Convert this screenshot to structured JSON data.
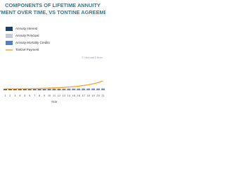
{
  "chart_data": {
    "type": "bar",
    "title": "COMPONENTS OF LIFETIME ANNUITY",
    "subtitle": "PAYMENT OVER TIME, VS TONTINE AGREEMENT",
    "annotation": "© Michael Kitces",
    "x_label": "Year",
    "categories": [
      "1",
      "2",
      "3",
      "4",
      "5",
      "6",
      "7",
      "8",
      "9",
      "10",
      "11",
      "12",
      "13",
      "14",
      "15",
      "16",
      "17",
      "18",
      "19",
      "20",
      "21"
    ],
    "ylim": [
      0,
      100
    ],
    "series": [
      {
        "name": "Annuity Interest",
        "color": "#1f3f6e",
        "kind": "bar",
        "values": [
          1.4,
          1.4,
          1.3,
          1.3,
          1.3,
          1.2,
          1.2,
          1.2,
          1.1,
          1.1,
          1.0,
          1.0,
          0.9,
          0.9,
          0.8,
          0.8,
          0.7,
          0.7,
          0.6,
          0.6,
          0.5
        ]
      },
      {
        "name": "Annuity Principal",
        "color": "#c3ccd6",
        "kind": "bar",
        "values": [
          0.8,
          0.8,
          0.8,
          0.8,
          0.8,
          0.8,
          0.8,
          0.8,
          0.8,
          0.8,
          0.8,
          0.8,
          0.8,
          0.8,
          0.8,
          0.8,
          0.8,
          0.8,
          0.8,
          0.8,
          0.8
        ]
      },
      {
        "name": "Annuity Mortality Credits",
        "color": "#4f81bd",
        "kind": "bar",
        "values": [
          0.2,
          0.2,
          0.3,
          0.3,
          0.3,
          0.4,
          0.4,
          0.4,
          0.5,
          0.5,
          0.6,
          0.6,
          0.7,
          0.7,
          0.8,
          0.8,
          0.9,
          0.9,
          1.0,
          1.0,
          1.1
        ]
      },
      {
        "name": "Tontine Payment",
        "color": "#f5a623",
        "kind": "line",
        "values": [
          2.0,
          2.0,
          2.0,
          2.1,
          2.2,
          2.3,
          2.4,
          2.6,
          2.8,
          3.0,
          3.3,
          3.6,
          4.0,
          4.5,
          5.1,
          5.8,
          6.7,
          7.8,
          9.2,
          11.0,
          13.5
        ]
      }
    ]
  }
}
